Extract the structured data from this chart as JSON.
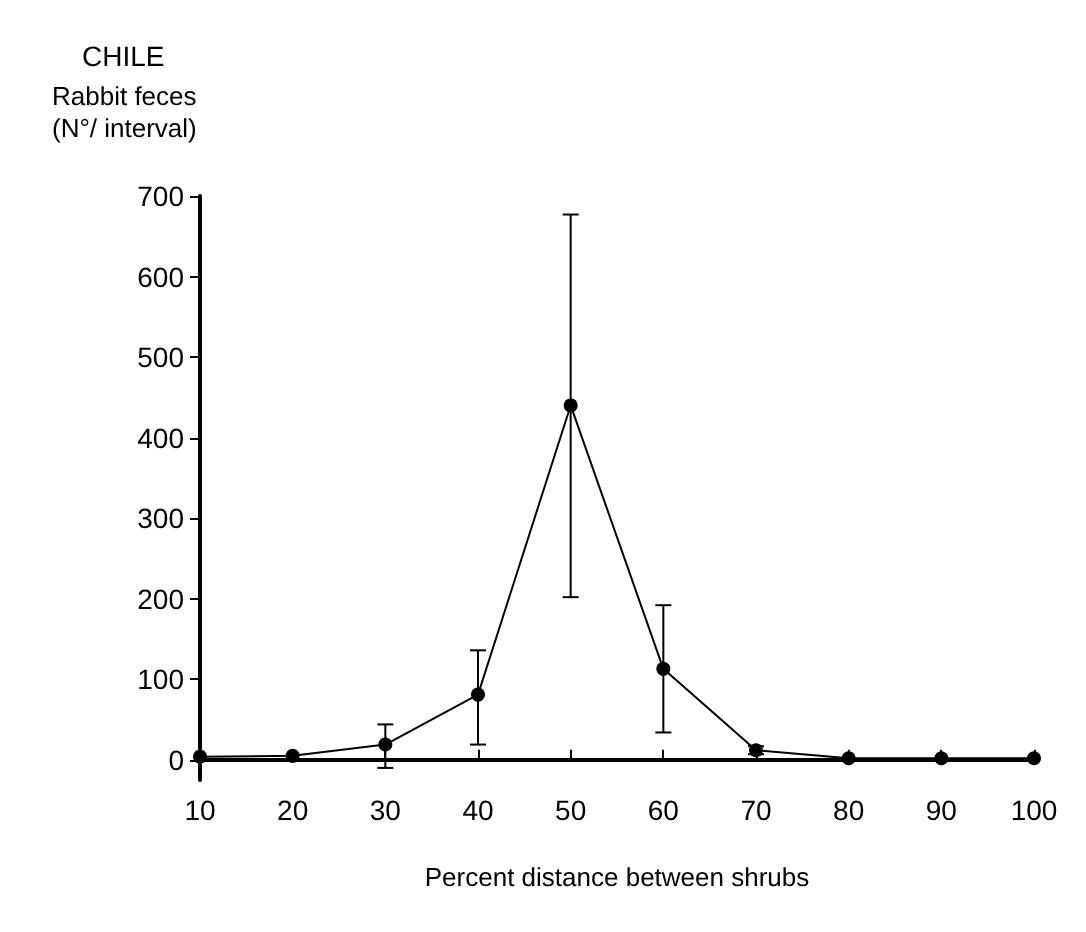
{
  "chart_data": {
    "type": "line",
    "title": "CHILE",
    "ylabel": "Rabbit feces\n(N°/ interval)",
    "xlabel": "Percent distance between shrubs",
    "x": [
      10,
      20,
      30,
      40,
      50,
      60,
      70,
      80,
      90,
      100
    ],
    "series": [
      {
        "color": "#000000",
        "values": [
          4,
          5,
          19,
          81,
          440,
          113,
          12,
          2,
          2,
          2
        ],
        "errors": [
          null,
          null,
          [
            -10,
            44
          ],
          [
            19,
            136
          ],
          [
            202,
            677
          ],
          [
            34,
            192
          ],
          [
            7,
            17
          ],
          null,
          null,
          null
        ]
      }
    ],
    "xlim": [
      10,
      100
    ],
    "xticks": [
      10,
      20,
      30,
      40,
      50,
      60,
      70,
      80,
      90,
      100
    ],
    "ylim": [
      -25,
      700
    ],
    "yticks": [
      0,
      100,
      200,
      300,
      400,
      500,
      600,
      700
    ],
    "grid": false,
    "marker": "circle",
    "line_style": "solid"
  }
}
